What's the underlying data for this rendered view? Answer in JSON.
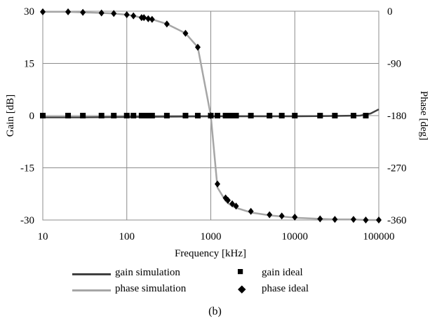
{
  "chart_data": {
    "type": "line",
    "x_scale": "log",
    "xlabel": "Frequency [kHz]",
    "ylabel_left": "Gain [dB]",
    "ylabel_right": "Phase [deg]",
    "xlim": [
      10,
      100000
    ],
    "ylim_left": [
      -30,
      30
    ],
    "ylim_right": [
      -360,
      0
    ],
    "x_ticks": [
      "10",
      "100",
      "1000",
      "10000",
      "100000"
    ],
    "y_ticks_left": [
      "30",
      "15",
      "0",
      "-15",
      "-30"
    ],
    "y_ticks_right": [
      "0",
      "-90",
      "-180",
      "-270",
      "-360"
    ],
    "grid": true,
    "legend_position": "bottom",
    "series": [
      {
        "name": "gain simulation",
        "axis": "left",
        "style": "line",
        "color": "#404040",
        "x": [
          10,
          30,
          100,
          300,
          1000,
          3000,
          10000,
          30000,
          60000,
          80000,
          100000
        ],
        "y": [
          -0.5,
          -0.5,
          -0.4,
          -0.3,
          -0.2,
          -0.2,
          -0.2,
          -0.1,
          0.0,
          0.6,
          1.8
        ]
      },
      {
        "name": "gain ideal",
        "axis": "left",
        "style": "square",
        "color": "#000000",
        "x": [
          10,
          20,
          30,
          50,
          70,
          100,
          120,
          150,
          160,
          180,
          200,
          300,
          500,
          700,
          1000,
          1200,
          1500,
          1600,
          1800,
          2000,
          3000,
          5000,
          7000,
          10000,
          20000,
          30000,
          50000,
          70000
        ],
        "y": [
          0,
          0,
          0,
          0,
          0,
          0,
          0,
          0,
          0,
          0,
          0,
          0,
          0,
          0,
          0,
          0,
          0,
          0,
          0,
          0,
          0,
          0,
          0,
          0,
          0,
          0,
          0,
          0
        ]
      },
      {
        "name": "phase simulation",
        "axis": "right",
        "style": "line",
        "color": "#a6a6a6",
        "x": [
          10,
          20,
          30,
          50,
          70,
          100,
          120,
          150,
          160,
          180,
          200,
          300,
          500,
          700,
          1000,
          1200,
          1500,
          1600,
          1800,
          2000,
          3000,
          5000,
          7000,
          10000,
          20000,
          30000,
          50000,
          70000,
          100000
        ],
        "y": [
          -1,
          -1,
          -2,
          -3,
          -4,
          -6,
          -8,
          -11,
          -11,
          -13,
          -14,
          -22,
          -38,
          -62,
          -180,
          -304,
          -327,
          -331,
          -336,
          -339,
          -347,
          -352,
          -354,
          -356,
          -358,
          -359,
          -359,
          -360,
          -360
        ]
      },
      {
        "name": "phase ideal",
        "axis": "right",
        "style": "diamond",
        "color": "#000000",
        "x": [
          10,
          20,
          30,
          50,
          70,
          100,
          120,
          150,
          160,
          180,
          200,
          300,
          500,
          700,
          1000,
          1200,
          1500,
          1600,
          1800,
          2000,
          3000,
          5000,
          7000,
          10000,
          20000,
          30000,
          50000,
          70000,
          100000
        ],
        "y": [
          -1,
          -1,
          -2,
          -3,
          -4,
          -6,
          -8,
          -11,
          -11,
          -13,
          -14,
          -22,
          -38,
          -62,
          -180,
          -298,
          -322,
          -326,
          -332,
          -336,
          -345,
          -351,
          -353,
          -355,
          -358,
          -359,
          -359,
          -360,
          -360
        ]
      }
    ]
  },
  "legend": [
    {
      "label": "gain simulation",
      "symbol": "line",
      "color": "#404040"
    },
    {
      "label": "gain ideal",
      "symbol": "square",
      "color": "#000000"
    },
    {
      "label": "phase simulation",
      "symbol": "line",
      "color": "#a6a6a6"
    },
    {
      "label": "phase ideal",
      "symbol": "diamond",
      "color": "#000000"
    }
  ],
  "caption": "(b)"
}
